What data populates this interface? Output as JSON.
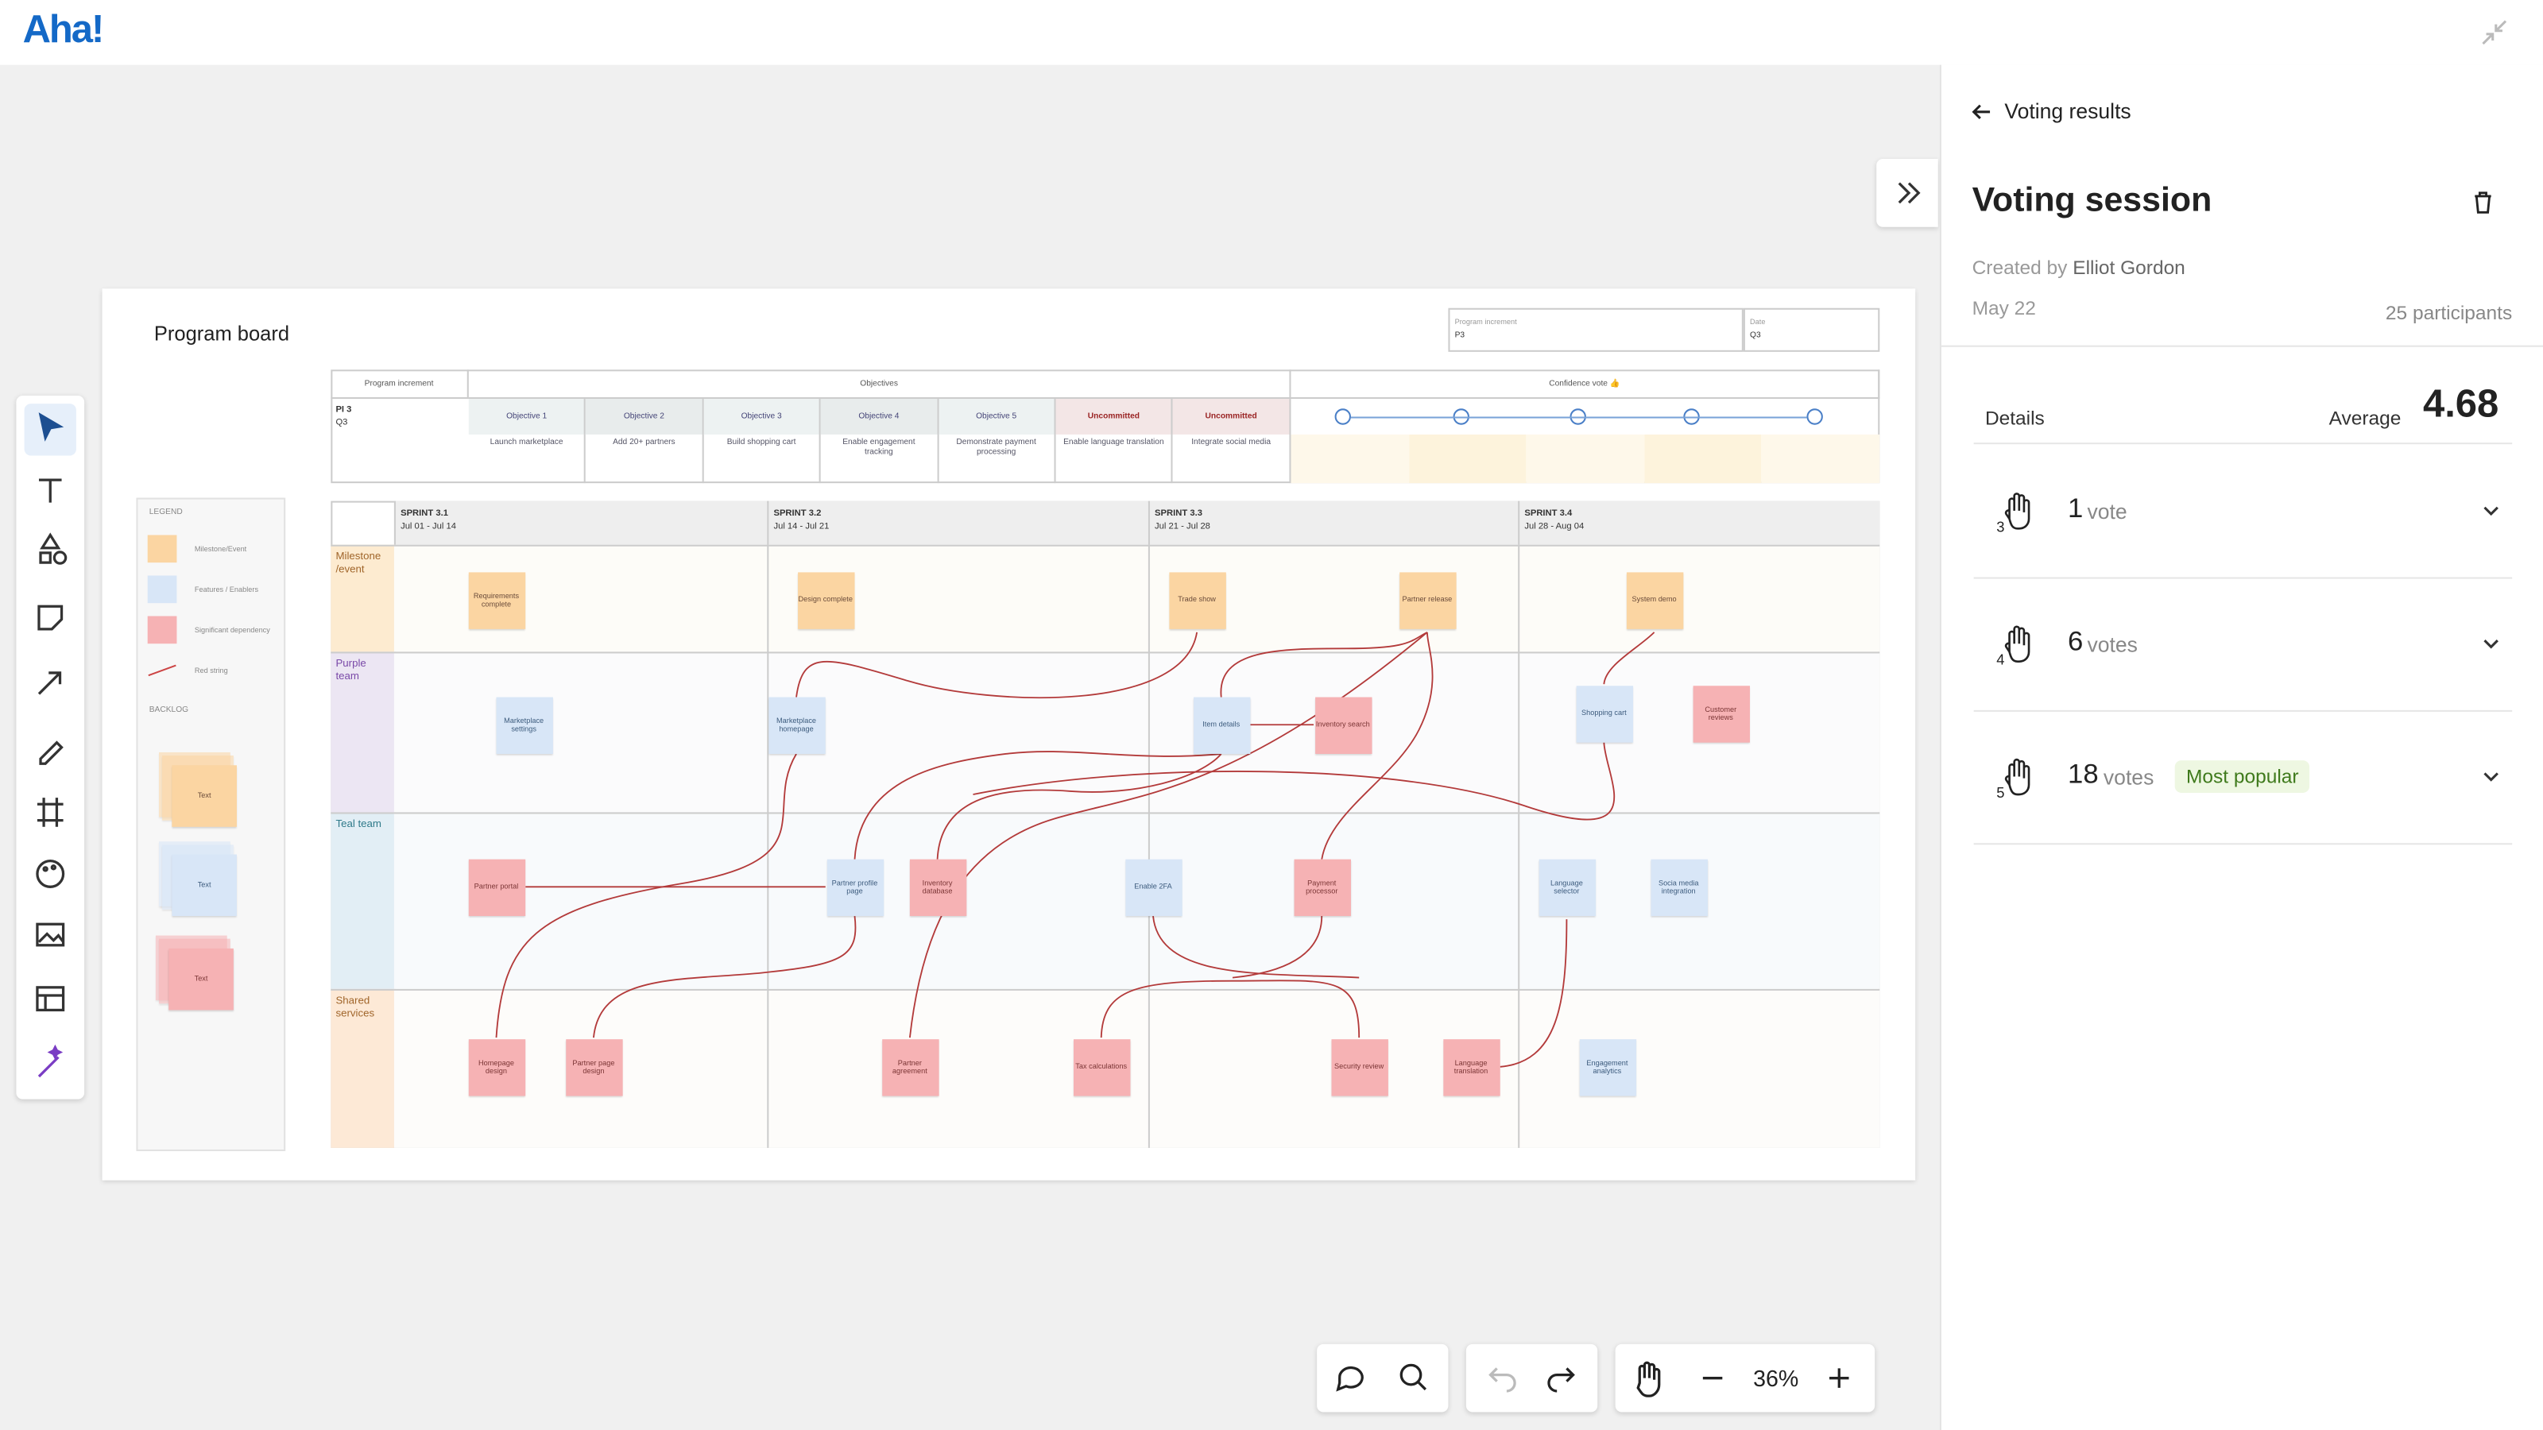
{
  "app": {
    "logo": "Aha!"
  },
  "board": {
    "title": "Program board",
    "header_fields": [
      {
        "label": "Program increment",
        "value": "P3"
      },
      {
        "label": "Date",
        "value": "Q3"
      }
    ],
    "objectives_table": {
      "headers": [
        "Program increment",
        "Objectives",
        "Confidence vote 👍"
      ],
      "pi": "PI 3",
      "quarter": "Q3",
      "objectives": [
        {
          "name": "Objective 1",
          "description": "Launch marketplace"
        },
        {
          "name": "Objective 2",
          "description": "Add 20+ partners"
        },
        {
          "name": "Objective 3",
          "description": "Build shopping cart"
        },
        {
          "name": "Objective 4",
          "description": "Enable engagement tracking"
        },
        {
          "name": "Objective 5",
          "description": "Demonstrate payment processing"
        },
        {
          "name": "Uncommitted",
          "description": "Enable language translation"
        },
        {
          "name": "Uncommitted",
          "description": "Integrate social media"
        }
      ]
    },
    "legend": {
      "title": "LEGEND",
      "items": [
        "Milestone/Event",
        "Features / Enablers",
        "Significant dependency",
        "Red string"
      ]
    },
    "backlog": {
      "title": "BACKLOG",
      "cards": [
        "Text",
        "Text",
        "Text"
      ]
    },
    "sprints": [
      {
        "name": "SPRINT 3.1",
        "dates": "Jul 01 - Jul 14"
      },
      {
        "name": "SPRINT 3.2",
        "dates": "Jul 14 - Jul 21"
      },
      {
        "name": "SPRINT 3.3",
        "dates": "Jul 21 - Jul 28"
      },
      {
        "name": "SPRINT 3.4",
        "dates": "Jul 28 - Aug 04"
      }
    ],
    "rows": [
      "Milestone /event",
      "Purple team",
      "Teal team",
      "Shared services"
    ],
    "cards": [
      "Requirements complete",
      "Design complete",
      "Trade show",
      "Partner release",
      "System demo",
      "Marketplace settings",
      "Marketplace homepage",
      "Item details",
      "Inventory search",
      "Shopping cart",
      "Customer reviews",
      "Partner portal",
      "Partner profile page",
      "Inventory database",
      "Enable 2FA",
      "Payment processor",
      "Language selector",
      "Socia media integration",
      "Homepage design",
      "Partner page design",
      "Partner agreement",
      "Tax calculations",
      "Security review",
      "Language translation",
      "Engagement analytics"
    ]
  },
  "zoom": {
    "level": "36%"
  },
  "panel": {
    "back": "Voting results",
    "title": "Voting session",
    "created_by_label": "Created by",
    "creator": "Elliot Gordon",
    "date": "May 22",
    "participants": "25 participants",
    "details": "Details",
    "average_label": "Average",
    "average": 4.68,
    "votes": [
      {
        "level": 3,
        "count": 1,
        "unit": "vote"
      },
      {
        "level": 4,
        "count": 6,
        "unit": "votes"
      },
      {
        "level": 5,
        "count": 18,
        "unit": "votes",
        "badge": "Most popular"
      }
    ]
  }
}
